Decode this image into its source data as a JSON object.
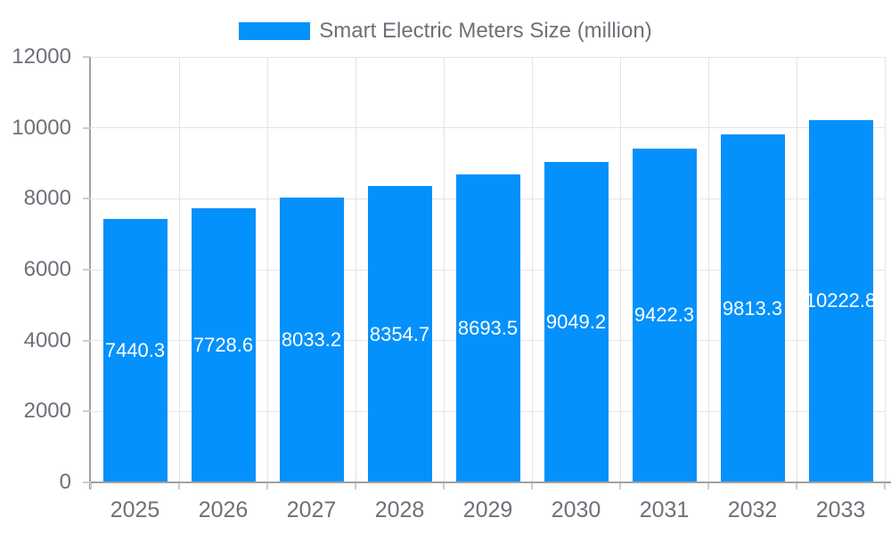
{
  "legend": {
    "label": "Smart Electric Meters Size (million)"
  },
  "colors": {
    "bar": "#0591fb",
    "grid": "#e4e4e4",
    "axis": "#a0a0a0",
    "tick": "#cccccc",
    "text": "#6e7079",
    "barlabel": "#ffffff",
    "background": "#ffffff"
  },
  "chart_data": {
    "type": "bar",
    "title": "Smart Electric Meters Size (million)",
    "series_name": "Smart Electric Meters Size (million)",
    "categories": [
      "2025",
      "2026",
      "2027",
      "2028",
      "2029",
      "2030",
      "2031",
      "2032",
      "2033"
    ],
    "values": [
      7440.3,
      7728.6,
      8033.2,
      8354.7,
      8693.5,
      9049.2,
      9422.3,
      9813.3,
      10222.8
    ],
    "bar_labels": [
      "7440.3",
      "7728.6",
      "8033.2",
      "8354.7",
      "8693.5",
      "9049.2",
      "9422.3",
      "9813.3",
      "10222.8"
    ],
    "xlabel": "",
    "ylabel": "",
    "ylim": [
      0,
      12000
    ],
    "ytick_step": 2000,
    "ytick_labels": [
      "0",
      "2000",
      "4000",
      "6000",
      "8000",
      "10000",
      "12000"
    ],
    "grid": true,
    "legend_position": "top-center",
    "bar_label_position": "inside-center"
  }
}
